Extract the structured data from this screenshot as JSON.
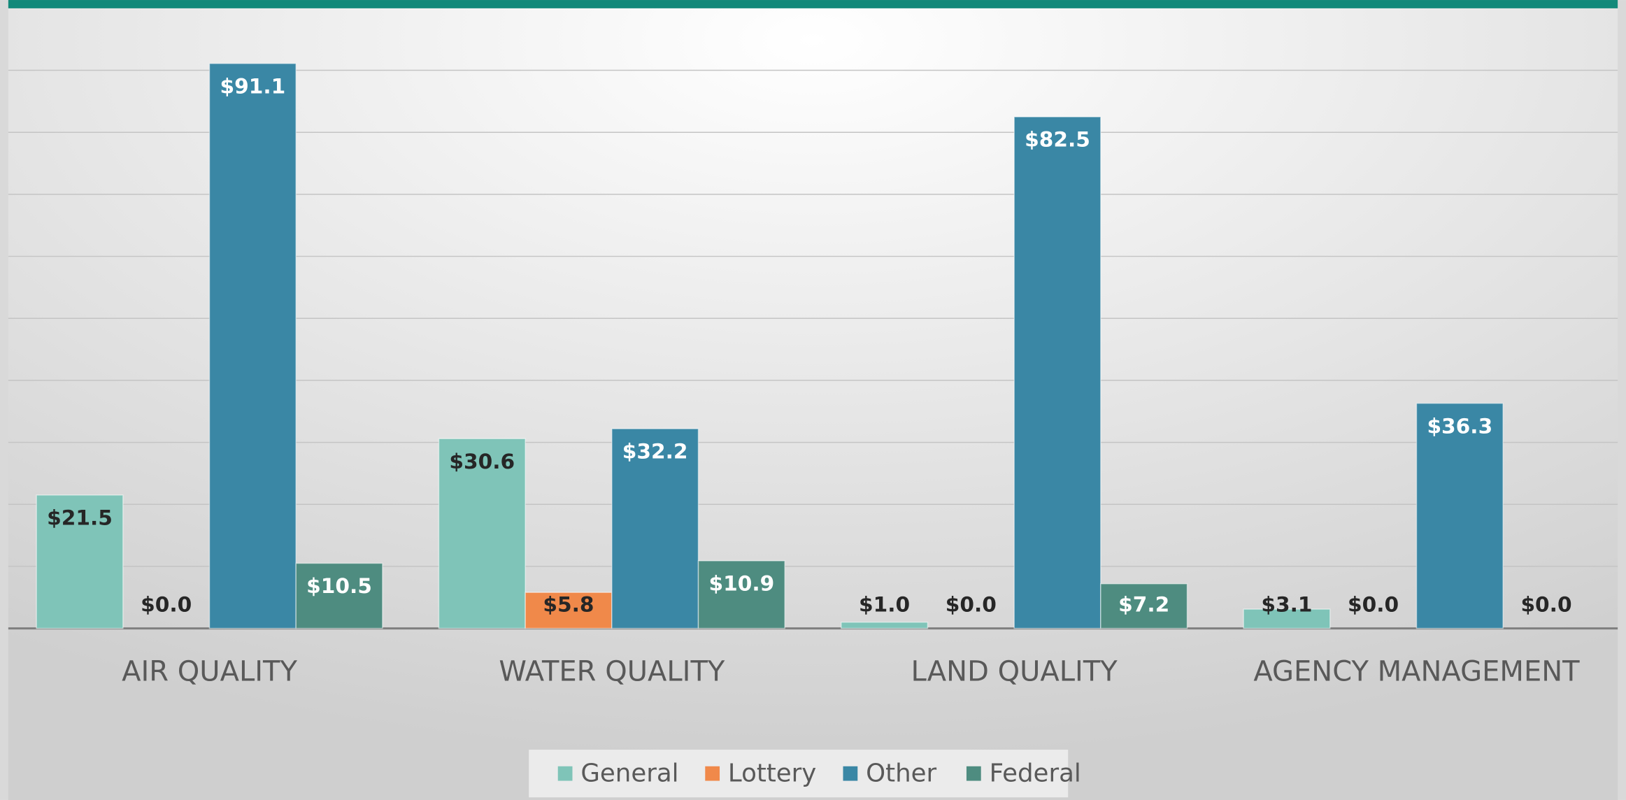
{
  "chart_data": {
    "type": "bar",
    "categories": [
      "AIR QUALITY",
      "WATER QUALITY",
      "LAND QUALITY",
      "AGENCY MANAGEMENT"
    ],
    "series": [
      {
        "name": "General",
        "color": "#7fc4b8",
        "label_color": "#262626",
        "values": [
          21.5,
          30.6,
          1.0,
          3.1
        ],
        "value_labels": [
          "$21.5",
          "$30.6",
          "$1.0",
          "$3.1"
        ]
      },
      {
        "name": "Lottery",
        "color": "#f0894a",
        "label_color": "#262626",
        "values": [
          0.0,
          5.8,
          0.0,
          0.0
        ],
        "value_labels": [
          "$0.0",
          "$5.8",
          "$0.0",
          "$0.0"
        ]
      },
      {
        "name": "Other",
        "color": "#3a87a5",
        "label_color": "#ffffff",
        "values": [
          91.1,
          32.2,
          82.5,
          36.3
        ],
        "value_labels": [
          "$91.1",
          "$32.2",
          "$82.5",
          "$36.3"
        ]
      },
      {
        "name": "Federal",
        "color": "#4e8c80",
        "label_color": "#ffffff",
        "values": [
          10.5,
          10.9,
          7.2,
          0.0
        ],
        "value_labels": [
          "$10.5",
          "$10.9",
          "$7.2",
          "$0.0"
        ]
      }
    ],
    "ylim": [
      0,
      100
    ],
    "yticks": [
      0,
      10,
      20,
      30,
      40,
      50,
      60,
      70,
      80,
      90
    ],
    "grid": true,
    "legend": "bottom"
  }
}
